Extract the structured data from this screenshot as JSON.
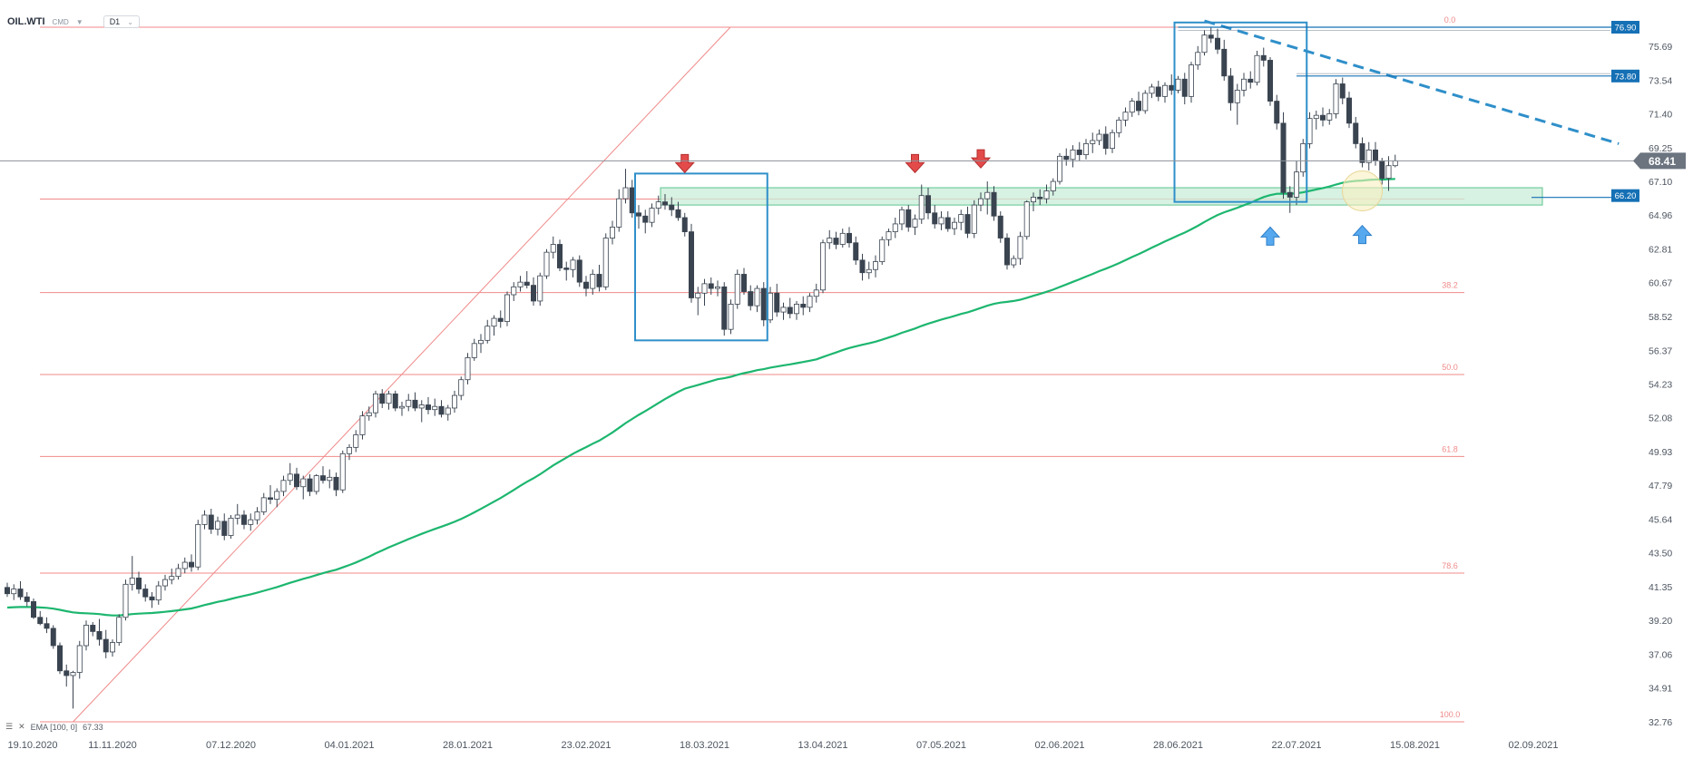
{
  "header": {
    "symbol": "OIL.WTI",
    "market": "CMD",
    "timeframe": "D1"
  },
  "indicator": {
    "label": "EMA [100, 0]",
    "value": "67.33",
    "color": "#1db66f"
  },
  "colors": {
    "bull_body": "#ffffff",
    "bear_body": "#3a4450",
    "wick": "#3a4450",
    "fib": "#f08a8a",
    "fib_text": "#f08a8a",
    "box": "#2f8fc9",
    "trend": "#2f8fc9",
    "support_zone_fill": "#c9ecd8",
    "support_zone_border": "#5cc48f",
    "price_tag": "#1570b5",
    "current_tag": "#6b747f",
    "down_arrow": "#e34b4b",
    "up_arrow": "#56a9ef"
  },
  "chart_data": {
    "type": "candlestick",
    "symbol": "OIL.WTI",
    "timeframe": "D1",
    "ylim": [
      32.76,
      78.2
    ],
    "y_ticks": [
      32.76,
      34.91,
      37.06,
      39.2,
      41.35,
      43.5,
      45.64,
      47.79,
      49.93,
      52.08,
      54.23,
      56.37,
      58.52,
      60.67,
      62.81,
      64.96,
      67.1,
      69.25,
      71.4,
      73.54,
      75.69
    ],
    "x_ticks": [
      "19.10.2020",
      "11.11.2020",
      "07.12.2020",
      "04.01.2021",
      "28.01.2021",
      "23.02.2021",
      "18.03.2021",
      "13.04.2021",
      "07.05.2021",
      "02.06.2021",
      "28.06.2021",
      "22.07.2021",
      "15.08.2021",
      "02.09.2021"
    ],
    "x_tick_bar_index": [
      0,
      16,
      34,
      52,
      70,
      88,
      106,
      124,
      142,
      160,
      178,
      196,
      214,
      232
    ],
    "current_price": 68.41,
    "price_labels": [
      76.9,
      73.8,
      66.2
    ],
    "fibonacci": {
      "high": 76.9,
      "low": 32.76,
      "levels": [
        {
          "label": "0.0",
          "price": 76.9
        },
        {
          "label": "38.2",
          "price": 60.04
        },
        {
          "label": "50.0",
          "price": 54.83
        },
        {
          "label": "61.8",
          "price": 49.62
        },
        {
          "label": "78.6",
          "price": 42.21
        },
        {
          "label": "100.0",
          "price": 32.76
        }
      ],
      "extra_line_price": 65.98
    },
    "support_zone": [
      65.6,
      66.7
    ],
    "trendline": [
      [
        182,
        77.3
      ],
      [
        245,
        69.5
      ]
    ],
    "boxes": [
      {
        "from_bar": 96,
        "to_bar": 115,
        "top": 67.6,
        "bottom": 57.0
      },
      {
        "from_bar": 178,
        "to_bar": 197,
        "top": 77.2,
        "bottom": 65.8
      }
    ],
    "down_arrows": [
      {
        "bar": 103,
        "price": 67.2
      },
      {
        "bar": 138,
        "price": 67.2
      },
      {
        "bar": 148,
        "price": 67.5
      }
    ],
    "up_arrows": [
      {
        "bar": 192,
        "price": 64.2
      },
      {
        "bar": 206,
        "price": 64.3
      }
    ],
    "highlight_circle": {
      "bar": 206,
      "price": 66.5
    },
    "candles": [
      [
        41.3,
        41.6,
        40.7,
        40.9
      ],
      [
        40.9,
        41.5,
        40.5,
        41.2
      ],
      [
        41.2,
        41.7,
        40.5,
        40.7
      ],
      [
        40.7,
        41.0,
        40.1,
        40.4
      ],
      [
        40.4,
        40.6,
        39.3,
        39.4
      ],
      [
        39.4,
        39.8,
        38.9,
        39.0
      ],
      [
        39.0,
        39.4,
        38.4,
        38.7
      ],
      [
        38.7,
        38.9,
        37.4,
        37.6
      ],
      [
        37.6,
        37.8,
        35.8,
        36.0
      ],
      [
        36.0,
        36.4,
        35.0,
        35.7
      ],
      [
        35.7,
        36.0,
        33.6,
        35.9
      ],
      [
        35.9,
        37.9,
        35.5,
        37.6
      ],
      [
        37.6,
        39.2,
        37.3,
        38.9
      ],
      [
        38.9,
        39.1,
        38.2,
        38.5
      ],
      [
        38.5,
        39.3,
        37.6,
        38.0
      ],
      [
        38.0,
        38.6,
        36.8,
        37.2
      ],
      [
        37.2,
        38.0,
        36.9,
        37.8
      ],
      [
        37.8,
        39.6,
        37.6,
        39.4
      ],
      [
        39.4,
        41.8,
        39.2,
        41.5
      ],
      [
        41.5,
        43.3,
        41.1,
        41.9
      ],
      [
        41.9,
        42.3,
        40.9,
        41.2
      ],
      [
        41.2,
        41.5,
        40.4,
        40.7
      ],
      [
        40.7,
        41.0,
        40.0,
        40.5
      ],
      [
        40.5,
        41.7,
        40.2,
        41.4
      ],
      [
        41.4,
        42.1,
        41.1,
        41.8
      ],
      [
        41.8,
        42.5,
        41.5,
        42.0
      ],
      [
        42.0,
        42.8,
        41.8,
        42.5
      ],
      [
        42.5,
        43.2,
        42.2,
        42.9
      ],
      [
        42.9,
        43.4,
        42.3,
        42.6
      ],
      [
        42.6,
        45.6,
        42.4,
        45.3
      ],
      [
        45.3,
        46.2,
        45.0,
        45.9
      ],
      [
        45.9,
        46.3,
        44.7,
        45.0
      ],
      [
        45.0,
        45.8,
        44.6,
        45.5
      ],
      [
        45.5,
        46.0,
        44.3,
        44.6
      ],
      [
        44.6,
        45.9,
        44.4,
        45.7
      ],
      [
        45.7,
        46.6,
        45.3,
        45.9
      ],
      [
        45.9,
        46.2,
        45.0,
        45.3
      ],
      [
        45.3,
        46.0,
        44.9,
        45.6
      ],
      [
        45.6,
        46.4,
        45.3,
        46.1
      ],
      [
        46.1,
        47.3,
        45.9,
        47.0
      ],
      [
        47.0,
        47.8,
        46.6,
        46.9
      ],
      [
        46.9,
        47.6,
        46.4,
        47.4
      ],
      [
        47.4,
        48.4,
        47.1,
        48.1
      ],
      [
        48.1,
        49.2,
        47.8,
        48.5
      ],
      [
        48.5,
        48.9,
        47.5,
        47.7
      ],
      [
        47.7,
        48.4,
        46.9,
        48.2
      ],
      [
        48.2,
        48.5,
        47.1,
        47.4
      ],
      [
        47.4,
        48.5,
        47.2,
        48.4
      ],
      [
        48.4,
        49.0,
        47.9,
        48.1
      ],
      [
        48.1,
        48.8,
        47.6,
        48.3
      ],
      [
        48.3,
        48.6,
        47.1,
        47.5
      ],
      [
        47.5,
        50.0,
        47.3,
        49.8
      ],
      [
        49.8,
        50.4,
        49.4,
        50.2
      ],
      [
        50.2,
        51.3,
        49.9,
        51.0
      ],
      [
        51.0,
        52.5,
        50.7,
        52.2
      ],
      [
        52.2,
        52.8,
        51.9,
        52.4
      ],
      [
        52.4,
        53.8,
        52.1,
        53.6
      ],
      [
        53.6,
        53.9,
        52.7,
        53.0
      ],
      [
        53.0,
        53.8,
        52.6,
        53.6
      ],
      [
        53.6,
        53.8,
        52.5,
        52.7
      ],
      [
        52.7,
        53.1,
        52.2,
        52.8
      ],
      [
        52.8,
        53.6,
        52.5,
        53.2
      ],
      [
        53.2,
        53.7,
        52.5,
        52.7
      ],
      [
        52.7,
        53.2,
        51.8,
        52.9
      ],
      [
        52.9,
        53.4,
        52.3,
        52.6
      ],
      [
        52.6,
        53.3,
        52.2,
        52.8
      ],
      [
        52.8,
        53.2,
        52.1,
        52.3
      ],
      [
        52.3,
        52.9,
        51.9,
        52.7
      ],
      [
        52.7,
        53.8,
        52.4,
        53.5
      ],
      [
        53.5,
        54.7,
        53.2,
        54.5
      ],
      [
        54.5,
        56.2,
        54.2,
        55.9
      ],
      [
        55.9,
        57.1,
        55.7,
        56.8
      ],
      [
        56.8,
        57.4,
        56.2,
        57.0
      ],
      [
        57.0,
        58.3,
        56.8,
        57.9
      ],
      [
        57.9,
        58.6,
        57.3,
        58.4
      ],
      [
        58.4,
        58.9,
        57.8,
        58.2
      ],
      [
        58.2,
        60.1,
        57.9,
        59.9
      ],
      [
        59.9,
        60.7,
        59.5,
        60.4
      ],
      [
        60.4,
        61.1,
        60.1,
        60.7
      ],
      [
        60.7,
        61.4,
        60.3,
        60.5
      ],
      [
        60.5,
        61.0,
        59.2,
        59.5
      ],
      [
        59.5,
        61.3,
        59.2,
        61.1
      ],
      [
        61.1,
        62.8,
        60.9,
        62.6
      ],
      [
        62.6,
        63.6,
        62.2,
        63.1
      ],
      [
        63.1,
        63.4,
        61.4,
        61.6
      ],
      [
        61.6,
        62.0,
        60.8,
        61.5
      ],
      [
        61.5,
        62.3,
        61.0,
        62.1
      ],
      [
        62.1,
        62.4,
        60.4,
        60.7
      ],
      [
        60.7,
        61.1,
        59.8,
        60.3
      ],
      [
        60.3,
        61.5,
        59.9,
        61.2
      ],
      [
        61.2,
        61.8,
        60.1,
        60.4
      ],
      [
        60.4,
        63.8,
        60.2,
        63.5
      ],
      [
        63.5,
        64.6,
        63.1,
        64.2
      ],
      [
        64.2,
        66.6,
        63.9,
        66.0
      ],
      [
        66.0,
        67.9,
        65.7,
        66.7
      ],
      [
        66.7,
        67.2,
        64.8,
        65.1
      ],
      [
        65.1,
        65.6,
        64.1,
        64.9
      ],
      [
        64.9,
        65.3,
        63.8,
        64.5
      ],
      [
        64.5,
        65.7,
        64.2,
        65.4
      ],
      [
        65.4,
        66.2,
        65.0,
        65.8
      ],
      [
        65.8,
        66.3,
        65.3,
        65.6
      ],
      [
        65.6,
        66.1,
        64.9,
        65.3
      ],
      [
        65.3,
        65.8,
        64.6,
        64.8
      ],
      [
        64.8,
        65.1,
        63.6,
        63.9
      ],
      [
        63.9,
        64.4,
        59.4,
        59.7
      ],
      [
        59.7,
        60.4,
        58.6,
        60.0
      ],
      [
        60.0,
        60.9,
        59.2,
        60.6
      ],
      [
        60.6,
        61.0,
        59.9,
        60.3
      ],
      [
        60.3,
        60.8,
        59.8,
        60.4
      ],
      [
        60.4,
        60.7,
        57.3,
        57.7
      ],
      [
        57.7,
        59.6,
        57.4,
        59.3
      ],
      [
        59.3,
        61.5,
        59.0,
        61.2
      ],
      [
        61.2,
        61.6,
        59.9,
        60.1
      ],
      [
        60.1,
        60.5,
        58.9,
        59.2
      ],
      [
        59.2,
        60.5,
        58.8,
        60.3
      ],
      [
        60.3,
        60.7,
        57.9,
        58.3
      ],
      [
        58.3,
        60.4,
        58.1,
        60.0
      ],
      [
        60.0,
        60.6,
        58.5,
        58.8
      ],
      [
        58.8,
        59.4,
        58.3,
        59.1
      ],
      [
        59.1,
        59.7,
        58.4,
        58.7
      ],
      [
        58.7,
        59.5,
        58.3,
        59.3
      ],
      [
        59.3,
        59.8,
        58.6,
        59.1
      ],
      [
        59.1,
        60.0,
        58.8,
        59.8
      ],
      [
        59.8,
        60.6,
        59.4,
        60.2
      ],
      [
        60.2,
        63.4,
        60.0,
        63.2
      ],
      [
        63.2,
        64.0,
        62.8,
        63.5
      ],
      [
        63.5,
        63.9,
        62.8,
        63.1
      ],
      [
        63.1,
        64.1,
        62.9,
        63.8
      ],
      [
        63.8,
        64.2,
        62.9,
        63.2
      ],
      [
        63.2,
        63.6,
        61.8,
        62.1
      ],
      [
        62.1,
        62.5,
        60.8,
        61.3
      ],
      [
        61.3,
        62.0,
        60.9,
        61.5
      ],
      [
        61.5,
        62.4,
        61.0,
        62.0
      ],
      [
        62.0,
        63.6,
        61.8,
        63.4
      ],
      [
        63.4,
        64.1,
        63.0,
        63.9
      ],
      [
        63.9,
        64.8,
        63.5,
        64.4
      ],
      [
        64.4,
        65.5,
        64.0,
        65.3
      ],
      [
        65.3,
        65.6,
        63.9,
        64.2
      ],
      [
        64.2,
        65.0,
        63.7,
        64.7
      ],
      [
        64.7,
        66.9,
        64.4,
        66.2
      ],
      [
        66.2,
        66.7,
        64.7,
        65.1
      ],
      [
        65.1,
        65.6,
        64.1,
        64.4
      ],
      [
        64.4,
        65.2,
        64.0,
        64.8
      ],
      [
        64.8,
        65.2,
        63.9,
        64.1
      ],
      [
        64.1,
        64.8,
        63.7,
        64.5
      ],
      [
        64.5,
        65.3,
        64.0,
        65.0
      ],
      [
        65.0,
        65.5,
        63.5,
        63.8
      ],
      [
        63.8,
        65.9,
        63.5,
        65.6
      ],
      [
        65.6,
        66.4,
        65.2,
        66.0
      ],
      [
        66.0,
        67.1,
        65.0,
        66.4
      ],
      [
        66.4,
        66.8,
        64.6,
        64.9
      ],
      [
        64.9,
        65.2,
        63.2,
        63.5
      ],
      [
        63.5,
        63.8,
        61.5,
        61.8
      ],
      [
        61.8,
        62.4,
        61.6,
        62.2
      ],
      [
        62.2,
        63.9,
        61.8,
        63.6
      ],
      [
        63.6,
        65.9,
        63.4,
        65.8
      ],
      [
        65.8,
        66.4,
        65.2,
        66.1
      ],
      [
        66.1,
        66.6,
        65.6,
        66.0
      ],
      [
        66.0,
        66.9,
        65.7,
        66.5
      ],
      [
        66.5,
        67.3,
        66.2,
        67.1
      ],
      [
        67.1,
        68.9,
        66.9,
        68.7
      ],
      [
        68.7,
        69.2,
        68.1,
        68.5
      ],
      [
        68.5,
        69.4,
        68.0,
        69.1
      ],
      [
        69.1,
        69.6,
        68.4,
        68.8
      ],
      [
        68.8,
        69.8,
        68.5,
        69.5
      ],
      [
        69.5,
        70.2,
        68.9,
        69.7
      ],
      [
        69.7,
        70.4,
        69.4,
        70.1
      ],
      [
        70.1,
        70.6,
        68.8,
        69.2
      ],
      [
        69.2,
        70.4,
        68.9,
        70.2
      ],
      [
        70.2,
        71.2,
        69.9,
        71.0
      ],
      [
        71.0,
        71.8,
        70.6,
        71.5
      ],
      [
        71.5,
        72.4,
        71.2,
        72.2
      ],
      [
        72.2,
        72.8,
        71.3,
        71.6
      ],
      [
        71.6,
        72.9,
        71.4,
        72.7
      ],
      [
        72.7,
        73.3,
        72.4,
        73.1
      ],
      [
        73.1,
        73.5,
        72.2,
        72.5
      ],
      [
        72.5,
        73.4,
        72.1,
        73.2
      ],
      [
        73.2,
        73.9,
        72.6,
        72.9
      ],
      [
        72.9,
        73.8,
        72.7,
        73.6
      ],
      [
        73.6,
        74.0,
        72.0,
        72.5
      ],
      [
        72.5,
        74.7,
        72.1,
        74.5
      ],
      [
        74.5,
        75.7,
        74.2,
        75.3
      ],
      [
        75.3,
        76.7,
        75.1,
        76.4
      ],
      [
        76.4,
        76.9,
        75.9,
        76.2
      ],
      [
        76.2,
        76.8,
        75.2,
        75.5
      ],
      [
        75.5,
        76.1,
        73.5,
        73.8
      ],
      [
        73.8,
        74.3,
        71.6,
        72.1
      ],
      [
        72.1,
        73.3,
        70.7,
        72.9
      ],
      [
        72.9,
        74.0,
        72.5,
        73.6
      ],
      [
        73.6,
        74.1,
        73.0,
        73.4
      ],
      [
        73.4,
        75.4,
        73.2,
        75.1
      ],
      [
        75.1,
        75.6,
        74.4,
        74.8
      ],
      [
        74.8,
        75.0,
        71.9,
        72.2
      ],
      [
        72.2,
        72.6,
        70.4,
        70.8
      ],
      [
        70.8,
        71.5,
        66.0,
        66.4
      ],
      [
        66.4,
        66.8,
        65.1,
        66.1
      ],
      [
        66.1,
        68.4,
        65.6,
        67.7
      ],
      [
        67.7,
        69.8,
        67.4,
        69.5
      ],
      [
        69.5,
        71.5,
        69.2,
        71.1
      ],
      [
        71.1,
        71.6,
        70.4,
        71.3
      ],
      [
        71.3,
        71.8,
        70.6,
        71.0
      ],
      [
        71.0,
        71.7,
        70.7,
        71.4
      ],
      [
        71.4,
        73.6,
        71.1,
        73.3
      ],
      [
        73.3,
        73.7,
        72.0,
        72.4
      ],
      [
        72.4,
        72.8,
        70.5,
        70.8
      ],
      [
        70.8,
        71.2,
        69.2,
        69.5
      ],
      [
        69.5,
        69.9,
        68.0,
        68.3
      ],
      [
        68.3,
        69.6,
        67.8,
        69.1
      ],
      [
        69.1,
        69.6,
        68.1,
        68.4
      ],
      [
        68.4,
        68.6,
        66.9,
        67.3
      ],
      [
        67.3,
        68.7,
        66.5,
        68.1
      ],
      [
        68.1,
        68.8,
        68.0,
        68.41
      ]
    ]
  }
}
